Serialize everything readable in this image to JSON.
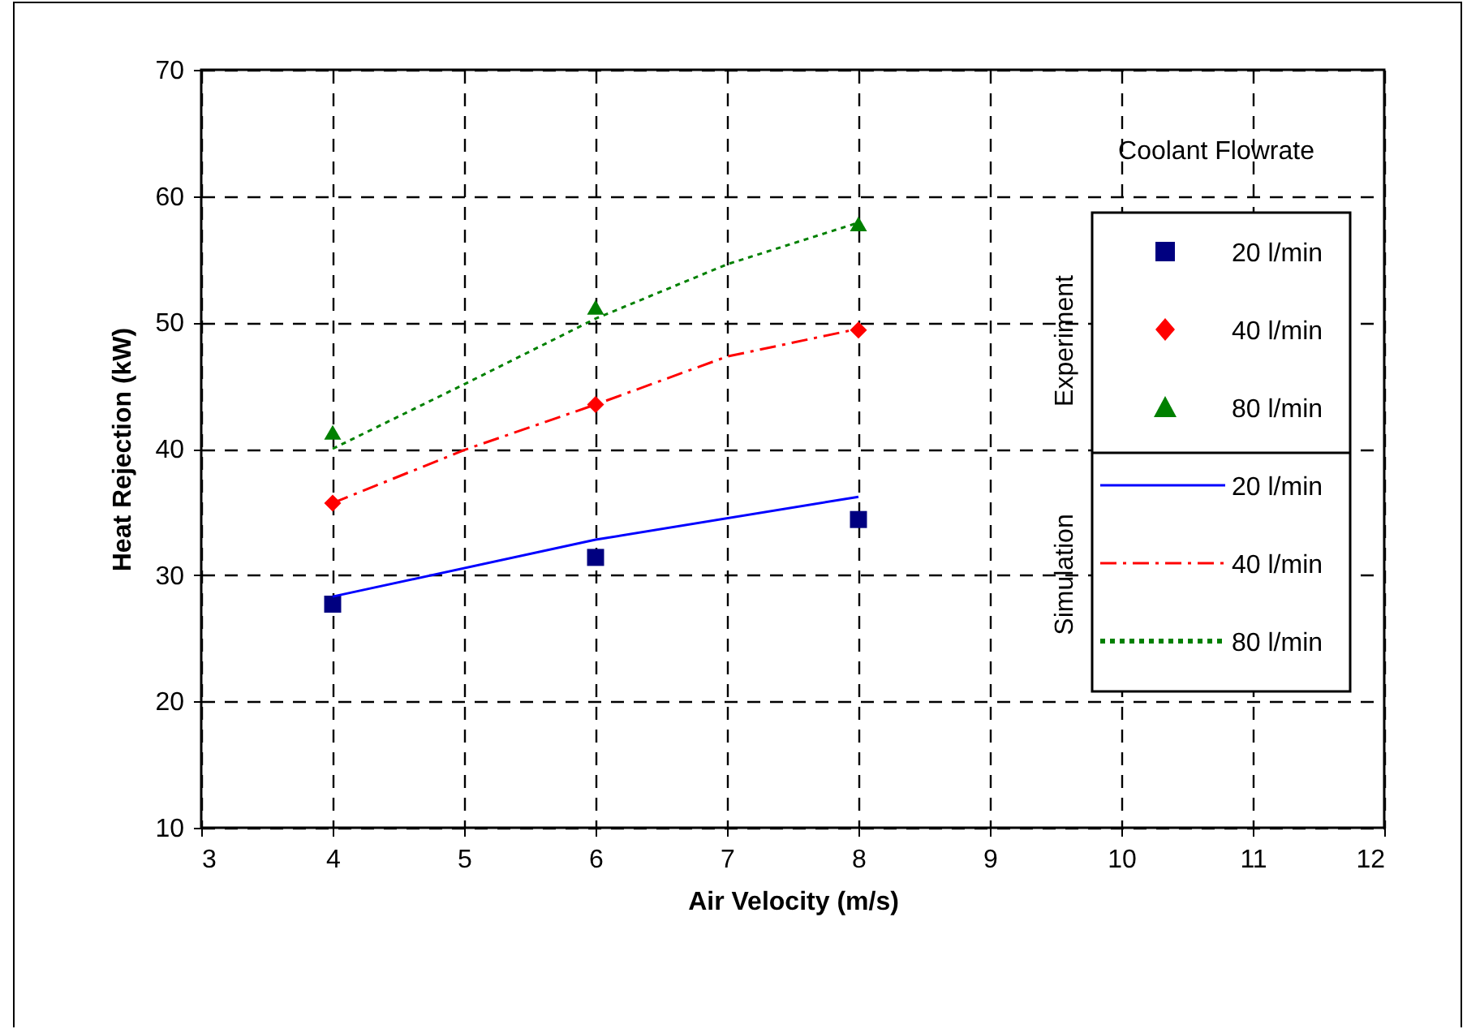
{
  "chart_data": {
    "type": "line",
    "xlabel": "Air Velocity (m/s)",
    "ylabel": "Heat Rejection (kW)",
    "legend_title": "Coolant Flowrate",
    "annotations": [
      "Experiment",
      "Simulation"
    ],
    "xlim": [
      3,
      12
    ],
    "xticks": [
      3,
      4,
      5,
      6,
      7,
      8,
      9,
      10,
      11,
      12
    ],
    "ylim": [
      10,
      70
    ],
    "yticks": [
      10,
      20,
      30,
      40,
      50,
      60,
      70
    ],
    "grid": true,
    "legend": "top right",
    "series": [
      {
        "name": "20 l/min",
        "type": "scatter",
        "marker": "square",
        "color": "#000080",
        "x": [
          4,
          6,
          8
        ],
        "values": [
          27.7,
          31.4,
          34.4
        ]
      },
      {
        "name": "40 l/min",
        "type": "scatter",
        "marker": "diamond",
        "color": "#ff0000",
        "x": [
          4,
          6,
          8
        ],
        "values": [
          35.7,
          43.5,
          49.4
        ]
      },
      {
        "name": "80 l/min",
        "type": "scatter",
        "marker": "triangle",
        "color": "#008000",
        "x": [
          4,
          6,
          8
        ],
        "values": [
          41.3,
          51.2,
          57.8
        ]
      },
      {
        "name": "20 l/min",
        "type": "line",
        "line_style": "solid",
        "color": "#0000ff",
        "x": [
          4,
          6,
          8
        ],
        "values": [
          28.3,
          32.8,
          36.2
        ]
      },
      {
        "name": "40 l/min",
        "type": "line",
        "line_style": "dashdot",
        "color": "#ff0000",
        "x": [
          4,
          5,
          6,
          7,
          8
        ],
        "values": [
          35.7,
          39.9,
          43.5,
          47.3,
          49.5
        ]
      },
      {
        "name": "80 l/min",
        "type": "line",
        "line_style": "dotted",
        "color": "#008000",
        "x": [
          4,
          5,
          6,
          7,
          8
        ],
        "values": [
          40.0,
          45.1,
          50.3,
          54.6,
          57.9
        ]
      }
    ]
  }
}
